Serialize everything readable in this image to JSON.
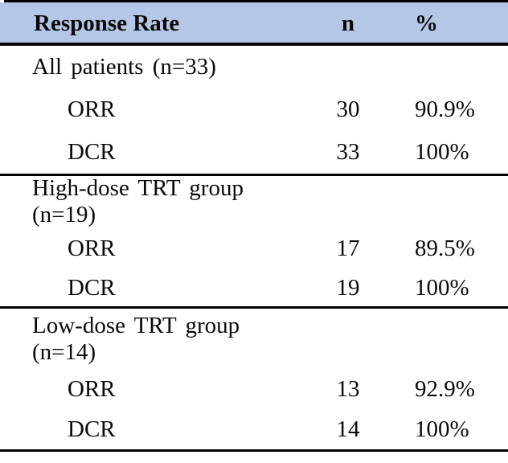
{
  "table": {
    "header": {
      "response_rate": "Response Rate",
      "n": "n",
      "pct": "%"
    },
    "sections": [
      {
        "title": "All patients (n=33)",
        "rows": [
          {
            "label": "ORR",
            "n": "30",
            "pct": "90.9%"
          },
          {
            "label": "DCR",
            "n": "33",
            "pct": "100%"
          }
        ]
      },
      {
        "title": "High-dose TRT group (n=19)",
        "rows": [
          {
            "label": "ORR",
            "n": "17",
            "pct": "89.5%"
          },
          {
            "label": "DCR",
            "n": "19",
            "pct": "100%"
          }
        ]
      },
      {
        "title": "Low-dose TRT group (n=14)",
        "rows": [
          {
            "label": "ORR",
            "n": "13",
            "pct": "92.9%"
          },
          {
            "label": "DCR",
            "n": "14",
            "pct": "100%"
          }
        ]
      }
    ],
    "colors": {
      "header_bg": "#b4c7e7",
      "rule": "#000000"
    }
  }
}
